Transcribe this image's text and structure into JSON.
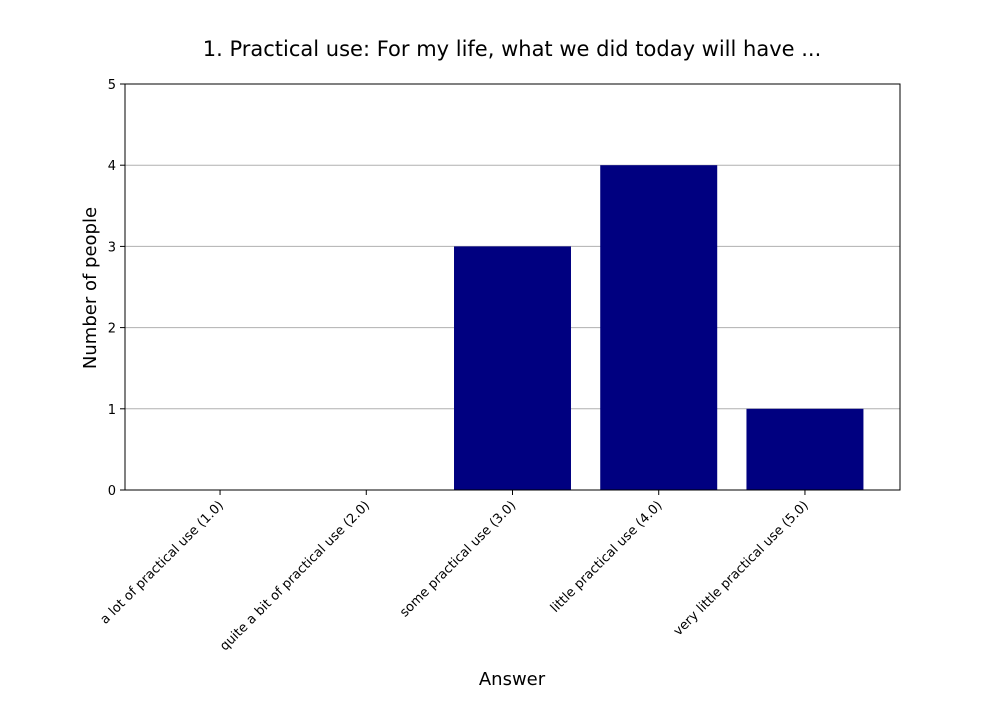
{
  "chart_data": {
    "type": "bar",
    "title": "1. Practical use: For my life, what we did today will have ...",
    "xlabel": "Answer",
    "ylabel": "Number of people",
    "categories": [
      "a lot of practical use (1.0)",
      "quite a bit of practical use (2.0)",
      "some practical use (3.0)",
      "little practical use (4.0)",
      "very little practical use (5.0)"
    ],
    "values": [
      0,
      0,
      3,
      4,
      1
    ],
    "ylim": [
      0,
      5
    ],
    "yticks": [
      0,
      1,
      2,
      3,
      4,
      5
    ],
    "grid": "horizontal",
    "bar_color": "#000080",
    "grid_color": "#b0b0b0"
  }
}
